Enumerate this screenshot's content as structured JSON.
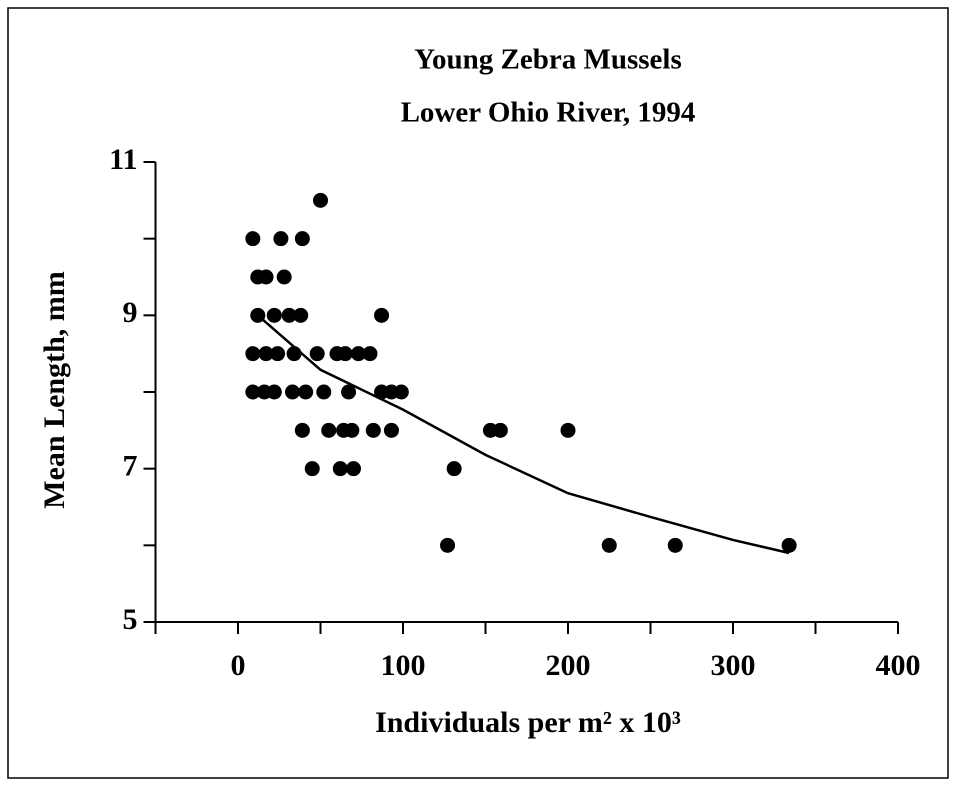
{
  "chart_data": {
    "type": "scatter",
    "title": "Young Zebra Mussels",
    "subtitle": "Lower Ohio River, 1994",
    "xlabel": "Individuals per m² x 10³",
    "ylabel": "Mean Length, mm",
    "xlim": [
      -50,
      400
    ],
    "xticks": [
      0,
      100,
      200,
      300,
      400
    ],
    "xminorticks": [
      -50,
      50,
      150,
      250,
      350
    ],
    "ylim": [
      5,
      11
    ],
    "yticks": [
      5,
      7,
      9,
      11
    ],
    "yminorticks": [
      6,
      8,
      10
    ],
    "series": [
      {
        "style": "points",
        "color": "#000000",
        "x": [
          9,
          26,
          39,
          50,
          12,
          17,
          28,
          12,
          22,
          31,
          38,
          87,
          9,
          17,
          24,
          34,
          48,
          60,
          65,
          73,
          80,
          9,
          16,
          22,
          33,
          41,
          52,
          67,
          87,
          93,
          99,
          39,
          55,
          64,
          69,
          82,
          93,
          153,
          159,
          200,
          45,
          62,
          70,
          131,
          127,
          225,
          265,
          334
        ],
        "values": [
          10,
          10,
          10,
          10.5,
          9.5,
          9.5,
          9.5,
          9,
          9,
          9,
          9,
          9,
          8.5,
          8.5,
          8.5,
          8.5,
          8.5,
          8.5,
          8.5,
          8.5,
          8.5,
          8,
          8,
          8,
          8,
          8,
          8,
          8,
          8,
          8,
          8,
          7.5,
          7.5,
          7.5,
          7.5,
          7.5,
          7.5,
          7.5,
          7.5,
          7.5,
          7,
          7,
          7,
          7,
          6,
          6,
          6,
          6
        ]
      },
      {
        "style": "line",
        "color": "#000000",
        "x": [
          12,
          50,
          100,
          150,
          200,
          250,
          300,
          334
        ],
        "values": [
          9,
          8.29,
          7.77,
          7.18,
          6.68,
          6.37,
          6.07,
          5.9
        ]
      }
    ]
  }
}
